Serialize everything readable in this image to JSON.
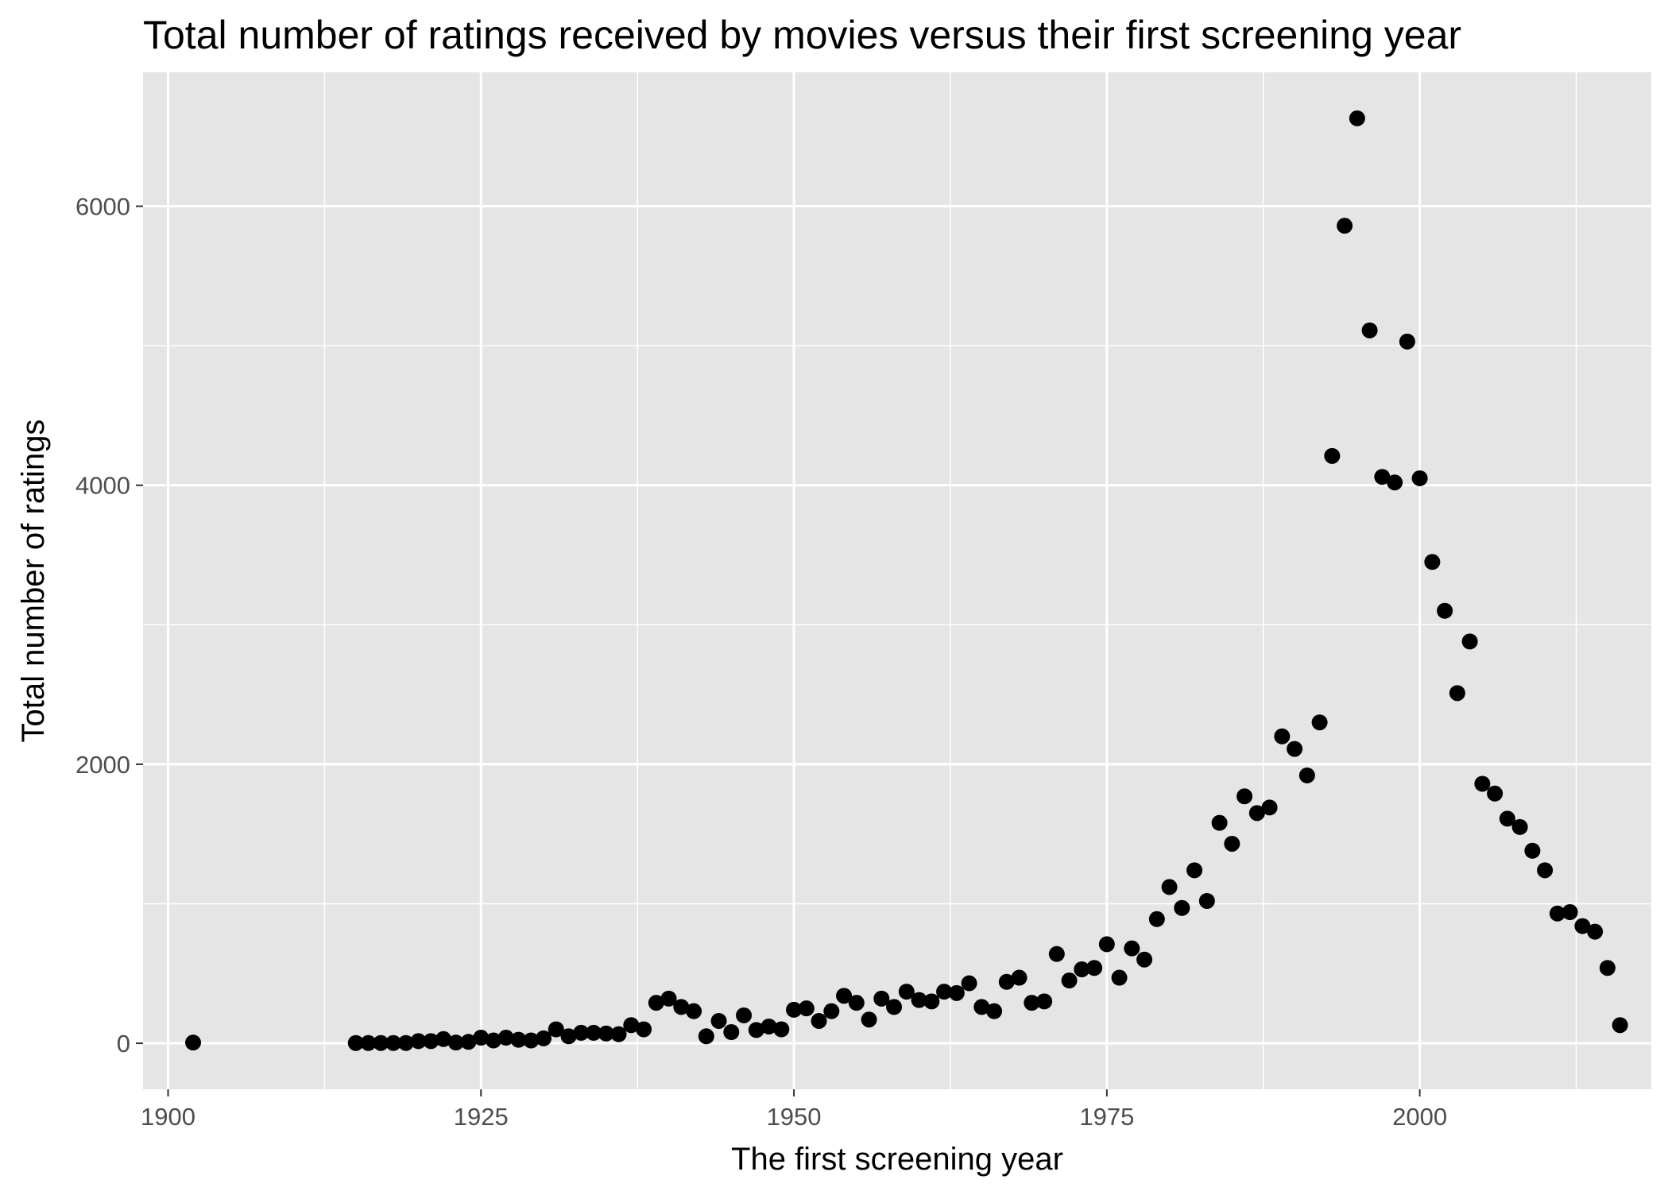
{
  "chart_data": {
    "type": "scatter",
    "title": "Total number of ratings received by movies versus their first screening year",
    "xlabel": "The first screening year",
    "ylabel": "Total number of ratings",
    "xlim": [
      1898,
      2018.5
    ],
    "ylim": [
      -330,
      6960
    ],
    "x_ticks": [
      1900,
      1925,
      1950,
      1975,
      2000
    ],
    "y_ticks": [
      0,
      2000,
      4000,
      6000
    ],
    "x_tick_labels": [
      "1900",
      "1925",
      "1950",
      "1975",
      "2000"
    ],
    "y_tick_labels": [
      "0",
      "2000",
      "4000",
      "6000"
    ],
    "grid": true,
    "legend": "none",
    "colors": {
      "panel_background": "#e5e5e5",
      "grid": "#ffffff",
      "point": "#000000"
    },
    "points": [
      [
        1902,
        5
      ],
      [
        1915,
        2
      ],
      [
        1916,
        2
      ],
      [
        1917,
        2
      ],
      [
        1918,
        2
      ],
      [
        1919,
        2
      ],
      [
        1920,
        15
      ],
      [
        1921,
        15
      ],
      [
        1922,
        30
      ],
      [
        1923,
        5
      ],
      [
        1924,
        10
      ],
      [
        1925,
        40
      ],
      [
        1926,
        20
      ],
      [
        1927,
        40
      ],
      [
        1928,
        25
      ],
      [
        1929,
        20
      ],
      [
        1930,
        35
      ],
      [
        1931,
        100
      ],
      [
        1932,
        50
      ],
      [
        1933,
        75
      ],
      [
        1934,
        75
      ],
      [
        1935,
        70
      ],
      [
        1936,
        65
      ],
      [
        1937,
        130
      ],
      [
        1938,
        100
      ],
      [
        1939,
        290
      ],
      [
        1940,
        320
      ],
      [
        1941,
        260
      ],
      [
        1942,
        230
      ],
      [
        1943,
        50
      ],
      [
        1944,
        160
      ],
      [
        1945,
        80
      ],
      [
        1946,
        200
      ],
      [
        1947,
        95
      ],
      [
        1948,
        120
      ],
      [
        1949,
        100
      ],
      [
        1950,
        240
      ],
      [
        1951,
        250
      ],
      [
        1952,
        160
      ],
      [
        1953,
        230
      ],
      [
        1954,
        340
      ],
      [
        1955,
        290
      ],
      [
        1956,
        170
      ],
      [
        1957,
        320
      ],
      [
        1958,
        260
      ],
      [
        1959,
        370
      ],
      [
        1960,
        310
      ],
      [
        1961,
        300
      ],
      [
        1962,
        370
      ],
      [
        1963,
        360
      ],
      [
        1964,
        430
      ],
      [
        1965,
        260
      ],
      [
        1966,
        230
      ],
      [
        1967,
        440
      ],
      [
        1968,
        470
      ],
      [
        1969,
        290
      ],
      [
        1970,
        300
      ],
      [
        1971,
        640
      ],
      [
        1972,
        450
      ],
      [
        1973,
        530
      ],
      [
        1974,
        540
      ],
      [
        1975,
        710
      ],
      [
        1976,
        470
      ],
      [
        1977,
        680
      ],
      [
        1978,
        600
      ],
      [
        1979,
        890
      ],
      [
        1980,
        1120
      ],
      [
        1981,
        970
      ],
      [
        1982,
        1240
      ],
      [
        1983,
        1020
      ],
      [
        1984,
        1580
      ],
      [
        1985,
        1430
      ],
      [
        1986,
        1770
      ],
      [
        1987,
        1650
      ],
      [
        1988,
        1690
      ],
      [
        1989,
        2200
      ],
      [
        1990,
        2110
      ],
      [
        1991,
        1920
      ],
      [
        1992,
        2300
      ],
      [
        1993,
        4210
      ],
      [
        1994,
        5860
      ],
      [
        1995,
        6630
      ],
      [
        1996,
        5110
      ],
      [
        1997,
        4060
      ],
      [
        1998,
        4020
      ],
      [
        1999,
        5030
      ],
      [
        2000,
        4050
      ],
      [
        2001,
        3450
      ],
      [
        2002,
        3100
      ],
      [
        2003,
        2510
      ],
      [
        2004,
        2880
      ],
      [
        2005,
        1860
      ],
      [
        2006,
        1790
      ],
      [
        2007,
        1610
      ],
      [
        2008,
        1550
      ],
      [
        2009,
        1380
      ],
      [
        2010,
        1240
      ],
      [
        2011,
        930
      ],
      [
        2012,
        940
      ],
      [
        2013,
        840
      ],
      [
        2014,
        800
      ],
      [
        2015,
        540
      ],
      [
        2016,
        130
      ]
    ]
  }
}
